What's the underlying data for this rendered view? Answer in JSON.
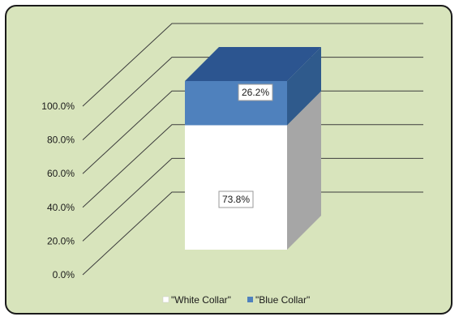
{
  "chart_data": {
    "type": "bar",
    "stacked": true,
    "three_d": true,
    "categories": [
      ""
    ],
    "series": [
      {
        "name": "\"White Collar\"",
        "values": [
          73.8
        ],
        "color": "#ffffff"
      },
      {
        "name": "\"Blue Collar\"",
        "values": [
          26.2
        ],
        "color": "#4f81bd"
      }
    ],
    "data_labels": [
      "73.8%",
      "26.2%"
    ],
    "y_ticks": [
      "0.0%",
      "20.0%",
      "40.0%",
      "60.0%",
      "80.0%",
      "100.0%"
    ],
    "ylim": [
      0,
      100
    ],
    "title": "",
    "xlabel": "",
    "ylabel": "",
    "grid": true,
    "legend_position": "bottom"
  },
  "colors": {
    "background": "#d8e4bc",
    "gridline": "#3c3c3c",
    "white_collar_front": "#ffffff",
    "white_collar_side": "#a6a6a6",
    "blue_collar_front": "#4f81bd",
    "blue_collar_side": "#2f5a8c",
    "blue_collar_top": "#2c5590"
  }
}
